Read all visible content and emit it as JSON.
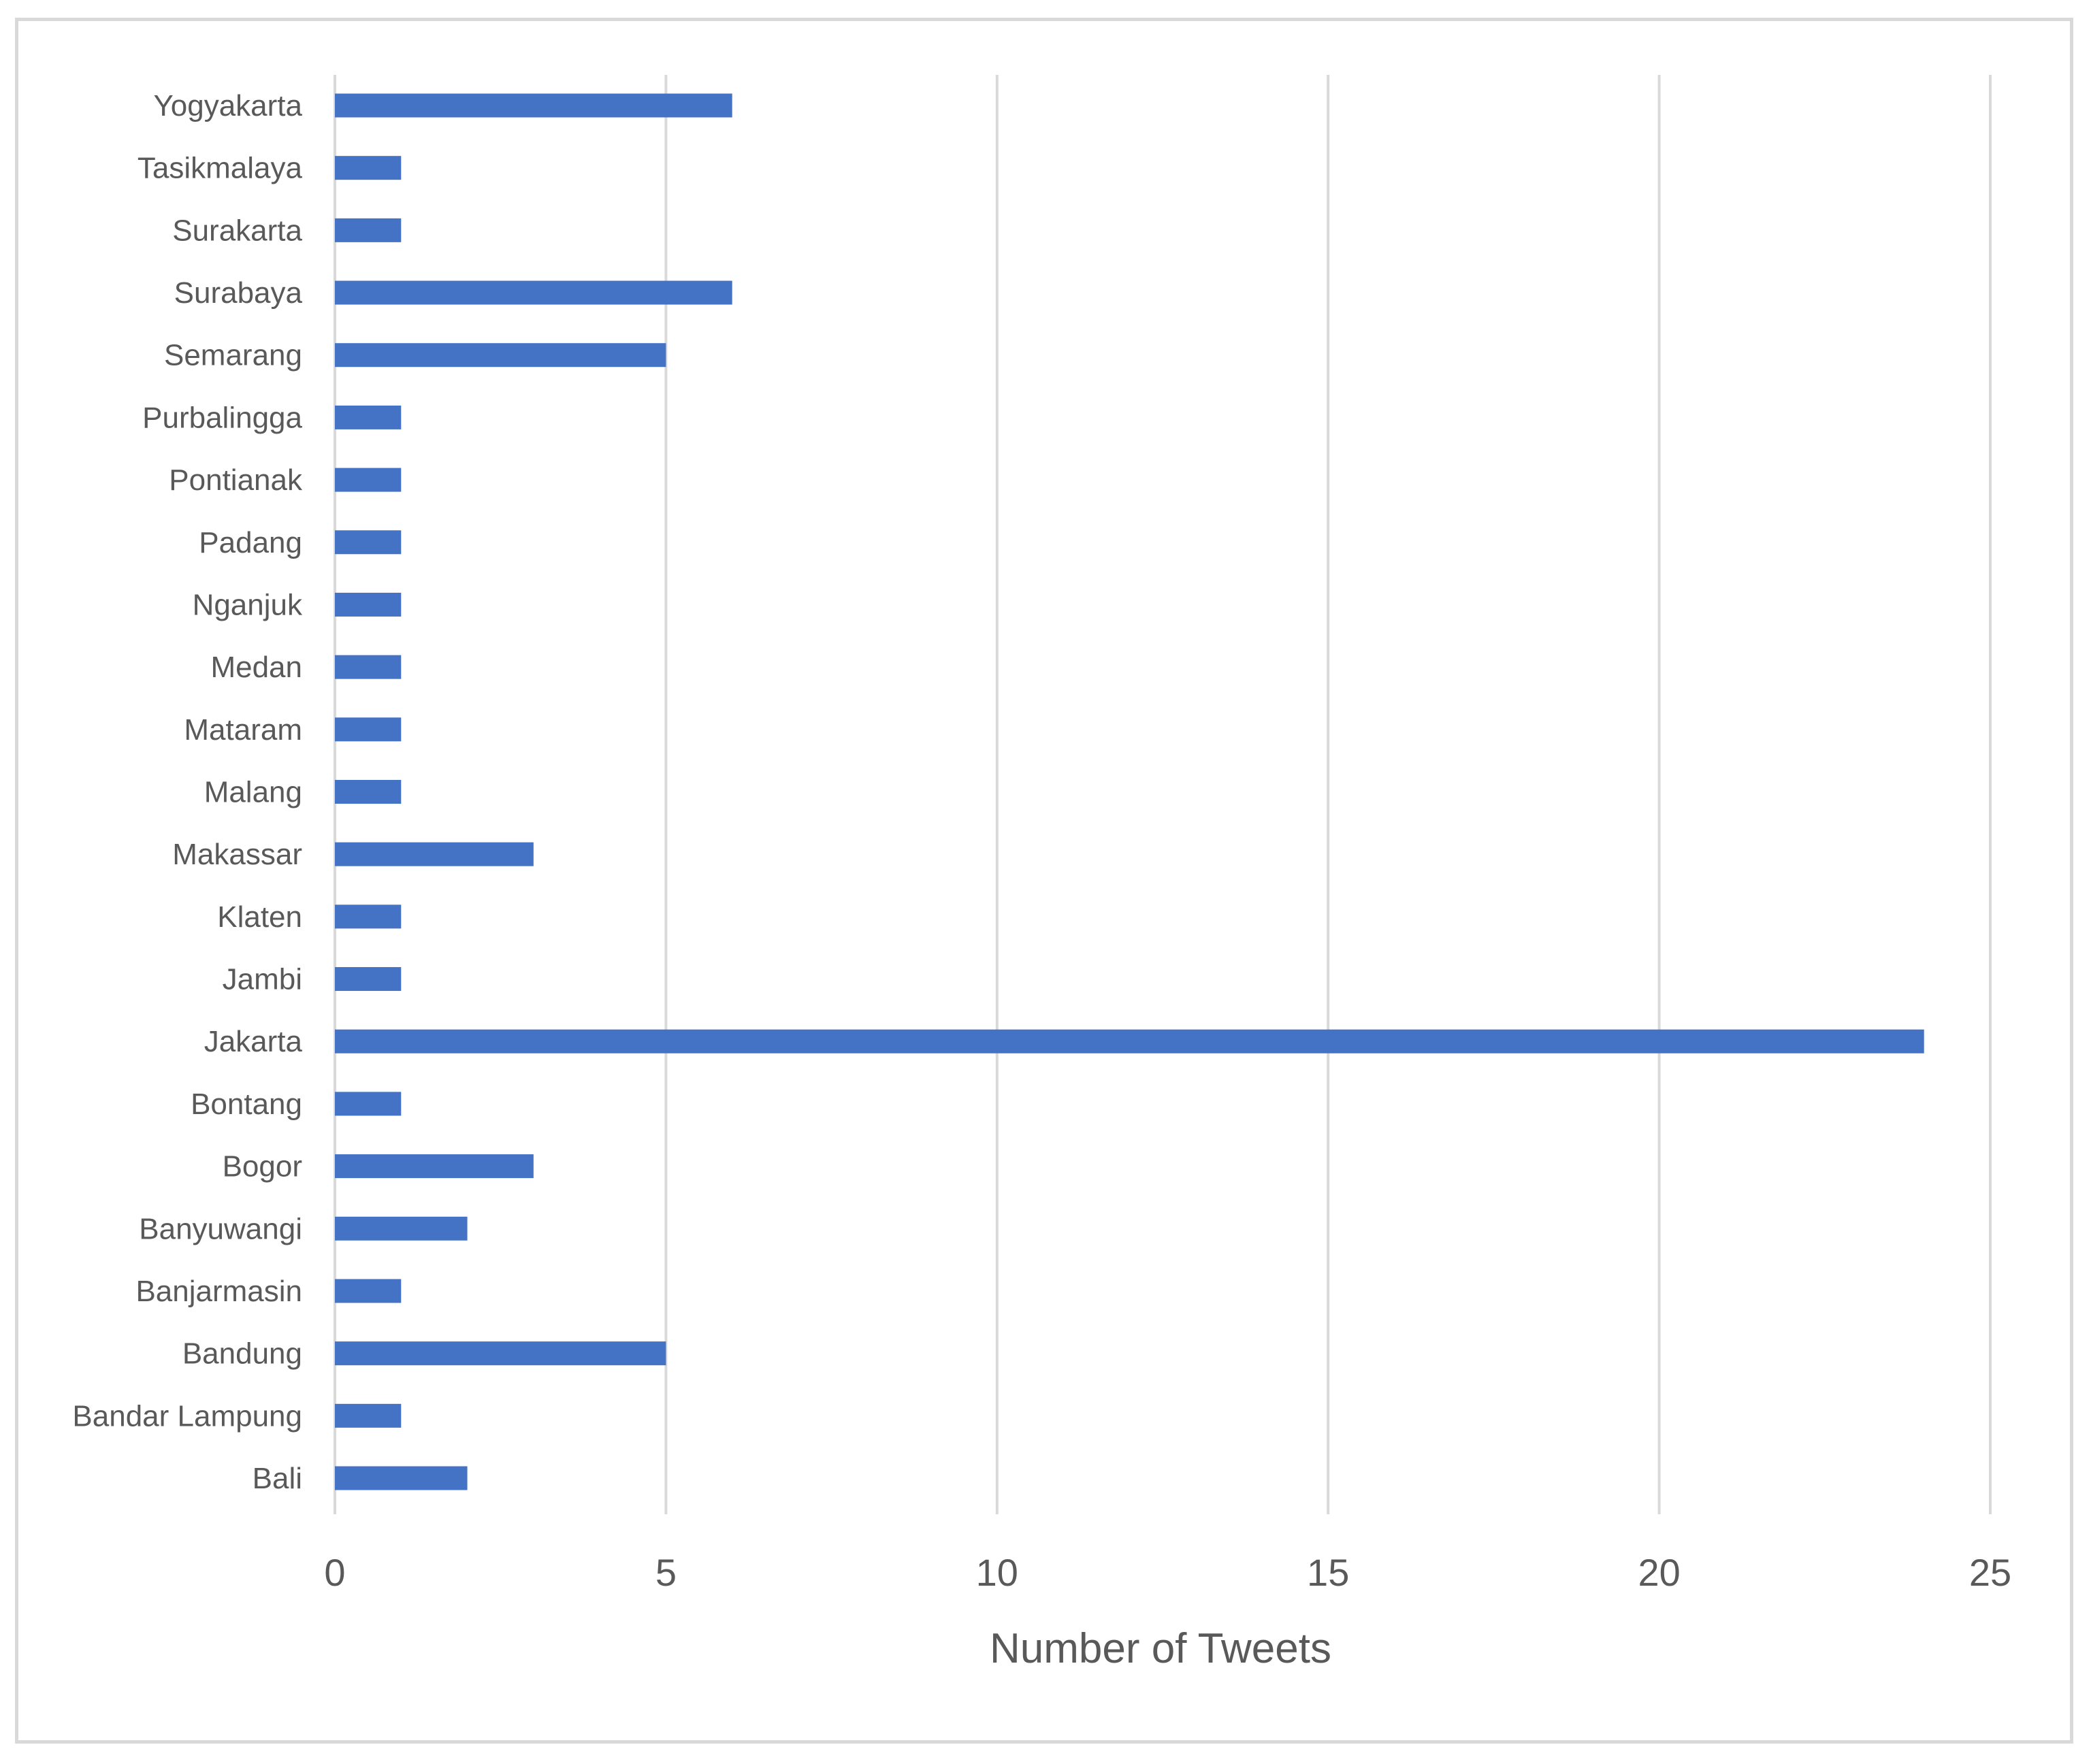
{
  "chart_data": {
    "type": "bar",
    "orientation": "horizontal",
    "title": "",
    "xlabel": "Number of Tweets",
    "ylabel": "",
    "xlim": [
      0,
      25
    ],
    "x_ticks": [
      0,
      5,
      10,
      15,
      20,
      25
    ],
    "grid": true,
    "legend": "none",
    "bar_color": "#4472c4",
    "categories": [
      "Bali",
      "Bandar Lampung",
      "Bandung",
      "Banjarmasin",
      "Banyuwangi",
      "Bogor",
      "Bontang",
      "Jakarta",
      "Jambi",
      "Klaten",
      "Makassar",
      "Malang",
      "Mataram",
      "Medan",
      "Nganjuk",
      "Padang",
      "Pontianak",
      "Purbalingga",
      "Semarang",
      "Surabaya",
      "Surakarta",
      "Tasikmalaya",
      "Yogyakarta"
    ],
    "values": [
      2,
      1,
      5,
      1,
      2,
      3,
      1,
      24,
      1,
      1,
      3,
      1,
      1,
      1,
      1,
      1,
      1,
      1,
      5,
      6,
      1,
      1,
      6
    ]
  }
}
